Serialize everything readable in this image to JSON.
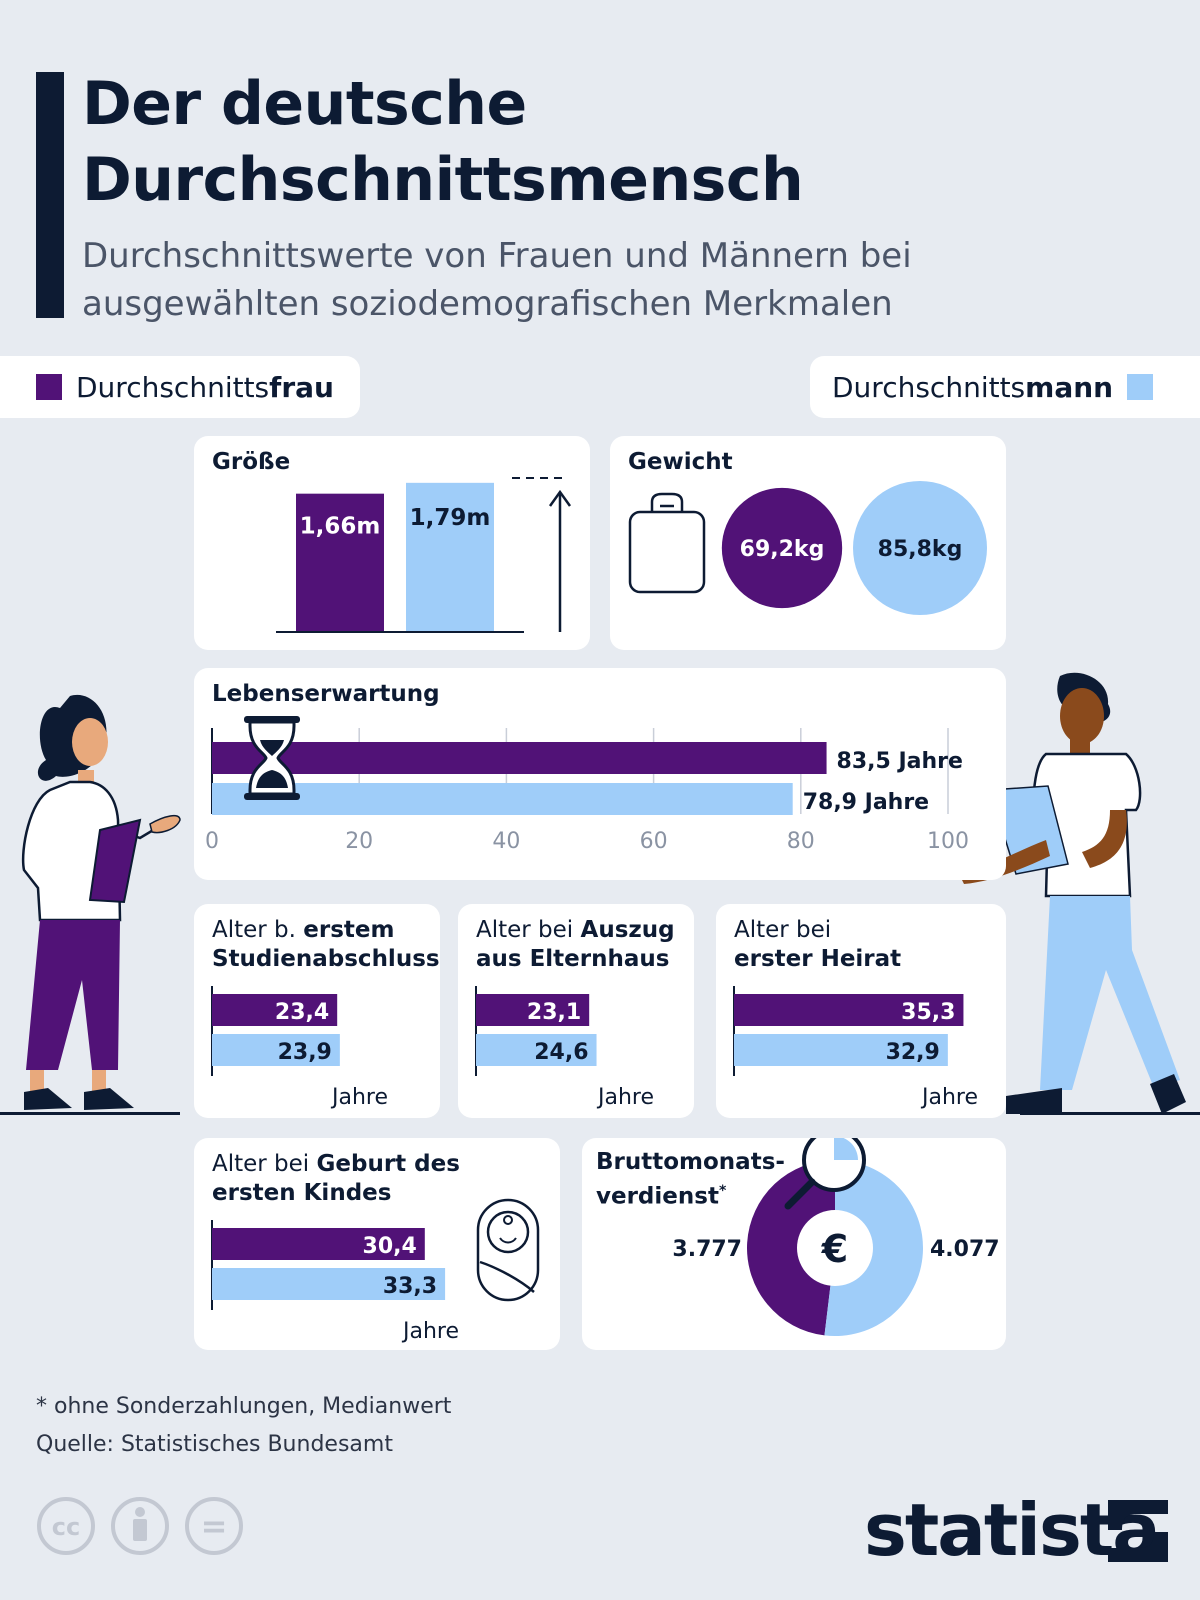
{
  "title_line1": "Der deutsche",
  "title_line2": "Durchschnittsmensch",
  "subtitle_line1": "Durchschnittswerte von Frauen und Männern bei",
  "subtitle_line2": "ausgewählten soziodemografischen Merkmalen",
  "legend": {
    "woman_prefix": "Durchschnitts",
    "woman_bold": "frau",
    "man_prefix": "Durchschnitts",
    "man_bold": "mann"
  },
  "colors": {
    "woman": "#511277",
    "man": "#9fcdf9",
    "dark": "#0d1b33",
    "background": "#e7ebf1"
  },
  "chart_data": [
    {
      "type": "bar",
      "title": "Größe",
      "categories": [
        "Durchschnittsfrau",
        "Durchschnittsmann"
      ],
      "values": [
        1.66,
        1.79
      ],
      "labels": [
        "1,66m",
        "1,79m"
      ],
      "unit": "m"
    },
    {
      "type": "other",
      "title": "Gewicht",
      "categories": [
        "Durchschnittsfrau",
        "Durchschnittsmann"
      ],
      "values": [
        69.2,
        85.8
      ],
      "labels": [
        "69,2kg",
        "85,8kg"
      ],
      "unit": "kg"
    },
    {
      "type": "bar",
      "title": "Lebenserwartung",
      "orientation": "horizontal",
      "categories": [
        "Durchschnittsfrau",
        "Durchschnittsmann"
      ],
      "values": [
        83.5,
        78.9
      ],
      "labels": [
        "83,5 Jahre",
        "78,9 Jahre"
      ],
      "xlim": [
        0,
        100
      ],
      "xticks": [
        "0",
        "20",
        "40",
        "60",
        "80",
        "100"
      ],
      "grid": true
    },
    {
      "type": "bar",
      "orientation": "horizontal",
      "title_normal": "Alter b. ",
      "title_bold1": "erstem",
      "title_bold2": "Studienabschluss",
      "categories": [
        "Durchschnittsfrau",
        "Durchschnittsmann"
      ],
      "values": [
        23.4,
        23.9
      ],
      "labels": [
        "23,4",
        "23,9"
      ],
      "unit": "Jahre"
    },
    {
      "type": "bar",
      "orientation": "horizontal",
      "title_normal": "Alter bei ",
      "title_bold1": "Auszug",
      "title_bold2": "aus Elternhaus",
      "categories": [
        "Durchschnittsfrau",
        "Durchschnittsmann"
      ],
      "values": [
        23.1,
        24.6
      ],
      "labels": [
        "23,1",
        "24,6"
      ],
      "unit": "Jahre"
    },
    {
      "type": "bar",
      "orientation": "horizontal",
      "title_normal": "Alter bei",
      "title_bold2": "erster Heirat",
      "categories": [
        "Durchschnittsfrau",
        "Durchschnittsmann"
      ],
      "values": [
        35.3,
        32.9
      ],
      "labels": [
        "35,3",
        "32,9"
      ],
      "unit": "Jahre"
    },
    {
      "type": "bar",
      "orientation": "horizontal",
      "title_normal": "Alter bei ",
      "title_bold1": "Geburt des",
      "title_bold2": "ersten Kindes",
      "categories": [
        "Durchschnittsfrau",
        "Durchschnittsmann"
      ],
      "values": [
        30.4,
        33.3
      ],
      "labels": [
        "30,4",
        "33,3"
      ],
      "unit": "Jahre"
    },
    {
      "type": "pie",
      "title_line1": "Bruttomonats-",
      "title_line2": "verdienst",
      "title_mark": "*",
      "categories": [
        "Durchschnittsfrau",
        "Durchschnittsmann"
      ],
      "values": [
        3777,
        4077
      ],
      "labels": [
        "3.777",
        "4.077"
      ],
      "center_symbol": "€"
    }
  ],
  "footnote": "* ohne Sonderzahlungen, Medianwert",
  "source": "Quelle: Statistisches Bundesamt",
  "license_icons": [
    "cc-icon",
    "by-icon",
    "nd-icon"
  ],
  "license_text": {
    "cc": "cc",
    "nd": "="
  },
  "brand": "statista"
}
